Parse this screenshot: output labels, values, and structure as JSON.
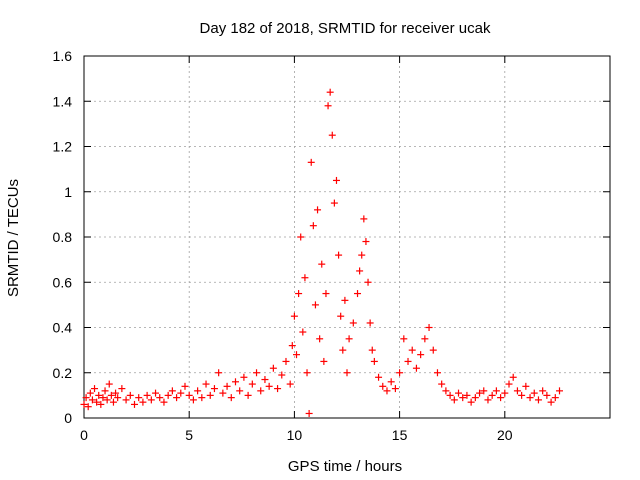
{
  "chart_data": {
    "type": "scatter",
    "title": "Day 182 of 2018, SRMTID for receiver ucak",
    "xlabel": "GPS time / hours",
    "ylabel": "SRMTID / TECUs",
    "xlim": [
      0,
      25
    ],
    "ylim": [
      0,
      1.6
    ],
    "xticks": [
      0,
      5,
      10,
      15,
      20
    ],
    "xtick_labels": [
      "0",
      "5",
      "10",
      "15",
      "20"
    ],
    "yticks": [
      0,
      0.2,
      0.4,
      0.6,
      0.8,
      1,
      1.2,
      1.4,
      1.6
    ],
    "ytick_labels": [
      "0",
      "0.2",
      "0.4",
      "0.6",
      "0.8",
      "1",
      "1.2",
      "1.4",
      "1.6"
    ],
    "grid": true,
    "marker": "+",
    "color": "#ff0000",
    "series": [
      {
        "name": "SRMTID",
        "points": [
          [
            0.0,
            0.06
          ],
          [
            0.1,
            0.09
          ],
          [
            0.2,
            0.05
          ],
          [
            0.3,
            0.11
          ],
          [
            0.4,
            0.08
          ],
          [
            0.5,
            0.13
          ],
          [
            0.6,
            0.07
          ],
          [
            0.7,
            0.1
          ],
          [
            0.8,
            0.06
          ],
          [
            0.9,
            0.09
          ],
          [
            1.0,
            0.12
          ],
          [
            1.1,
            0.08
          ],
          [
            1.2,
            0.15
          ],
          [
            1.3,
            0.1
          ],
          [
            1.4,
            0.07
          ],
          [
            1.5,
            0.11
          ],
          [
            1.6,
            0.09
          ],
          [
            1.8,
            0.13
          ],
          [
            2.0,
            0.08
          ],
          [
            2.2,
            0.1
          ],
          [
            2.4,
            0.06
          ],
          [
            2.6,
            0.09
          ],
          [
            2.8,
            0.07
          ],
          [
            3.0,
            0.1
          ],
          [
            3.2,
            0.08
          ],
          [
            3.4,
            0.11
          ],
          [
            3.6,
            0.09
          ],
          [
            3.8,
            0.07
          ],
          [
            4.0,
            0.1
          ],
          [
            4.2,
            0.12
          ],
          [
            4.4,
            0.09
          ],
          [
            4.6,
            0.11
          ],
          [
            4.8,
            0.14
          ],
          [
            5.0,
            0.1
          ],
          [
            5.2,
            0.08
          ],
          [
            5.4,
            0.12
          ],
          [
            5.6,
            0.09
          ],
          [
            5.8,
            0.15
          ],
          [
            6.0,
            0.1
          ],
          [
            6.2,
            0.13
          ],
          [
            6.4,
            0.2
          ],
          [
            6.6,
            0.11
          ],
          [
            6.8,
            0.14
          ],
          [
            7.0,
            0.09
          ],
          [
            7.2,
            0.16
          ],
          [
            7.4,
            0.12
          ],
          [
            7.6,
            0.18
          ],
          [
            7.8,
            0.1
          ],
          [
            8.0,
            0.15
          ],
          [
            8.2,
            0.2
          ],
          [
            8.4,
            0.12
          ],
          [
            8.6,
            0.17
          ],
          [
            8.8,
            0.14
          ],
          [
            9.0,
            0.22
          ],
          [
            9.2,
            0.13
          ],
          [
            9.4,
            0.19
          ],
          [
            9.6,
            0.25
          ],
          [
            9.8,
            0.15
          ],
          [
            9.9,
            0.32
          ],
          [
            10.0,
            0.45
          ],
          [
            10.1,
            0.28
          ],
          [
            10.2,
            0.55
          ],
          [
            10.3,
            0.8
          ],
          [
            10.4,
            0.38
          ],
          [
            10.5,
            0.62
          ],
          [
            10.6,
            0.2
          ],
          [
            10.7,
            0.02
          ],
          [
            10.8,
            1.13
          ],
          [
            10.9,
            0.85
          ],
          [
            11.0,
            0.5
          ],
          [
            11.1,
            0.92
          ],
          [
            11.2,
            0.35
          ],
          [
            11.3,
            0.68
          ],
          [
            11.4,
            0.25
          ],
          [
            11.5,
            0.55
          ],
          [
            11.6,
            1.38
          ],
          [
            11.7,
            1.44
          ],
          [
            11.8,
            1.25
          ],
          [
            11.9,
            0.95
          ],
          [
            12.0,
            1.05
          ],
          [
            12.1,
            0.72
          ],
          [
            12.2,
            0.45
          ],
          [
            12.3,
            0.3
          ],
          [
            12.4,
            0.52
          ],
          [
            12.5,
            0.2
          ],
          [
            12.6,
            0.35
          ],
          [
            12.8,
            0.42
          ],
          [
            13.0,
            0.55
          ],
          [
            13.1,
            0.65
          ],
          [
            13.2,
            0.72
          ],
          [
            13.3,
            0.88
          ],
          [
            13.4,
            0.78
          ],
          [
            13.5,
            0.6
          ],
          [
            13.6,
            0.42
          ],
          [
            13.7,
            0.3
          ],
          [
            13.8,
            0.25
          ],
          [
            14.0,
            0.18
          ],
          [
            14.2,
            0.14
          ],
          [
            14.4,
            0.12
          ],
          [
            14.6,
            0.16
          ],
          [
            14.8,
            0.13
          ],
          [
            15.0,
            0.2
          ],
          [
            15.2,
            0.35
          ],
          [
            15.4,
            0.25
          ],
          [
            15.6,
            0.3
          ],
          [
            15.8,
            0.22
          ],
          [
            16.0,
            0.28
          ],
          [
            16.2,
            0.35
          ],
          [
            16.4,
            0.4
          ],
          [
            16.6,
            0.3
          ],
          [
            16.8,
            0.2
          ],
          [
            17.0,
            0.15
          ],
          [
            17.2,
            0.12
          ],
          [
            17.4,
            0.1
          ],
          [
            17.6,
            0.08
          ],
          [
            17.8,
            0.11
          ],
          [
            18.0,
            0.09
          ],
          [
            18.2,
            0.1
          ],
          [
            18.4,
            0.07
          ],
          [
            18.6,
            0.09
          ],
          [
            18.8,
            0.11
          ],
          [
            19.0,
            0.12
          ],
          [
            19.2,
            0.08
          ],
          [
            19.4,
            0.1
          ],
          [
            19.6,
            0.12
          ],
          [
            19.8,
            0.09
          ],
          [
            20.0,
            0.11
          ],
          [
            20.2,
            0.15
          ],
          [
            20.4,
            0.18
          ],
          [
            20.6,
            0.12
          ],
          [
            20.8,
            0.1
          ],
          [
            21.0,
            0.14
          ],
          [
            21.2,
            0.09
          ],
          [
            21.4,
            0.11
          ],
          [
            21.6,
            0.08
          ],
          [
            21.8,
            0.12
          ],
          [
            22.0,
            0.1
          ],
          [
            22.2,
            0.07
          ],
          [
            22.4,
            0.09
          ],
          [
            22.6,
            0.12
          ]
        ]
      }
    ]
  }
}
